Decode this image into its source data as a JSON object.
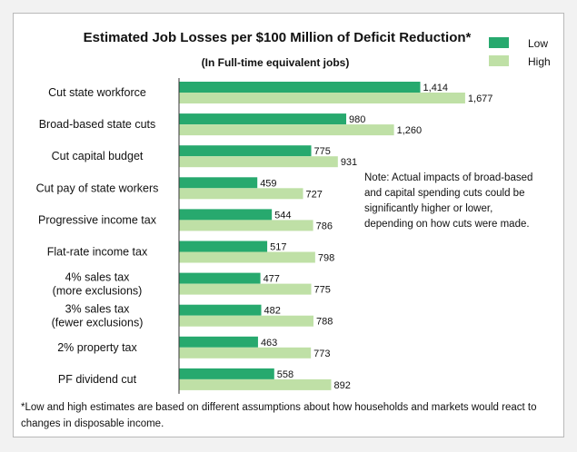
{
  "colors": {
    "low": "#27a96e",
    "high": "#bfe0a6",
    "axis": "#333333"
  },
  "chart_data": {
    "type": "bar",
    "orientation": "horizontal",
    "title": "Estimated Job Losses per $100 Million of Deficit Reduction*",
    "subtitle": "(In Full-time equivalent jobs)",
    "categories": [
      [
        "Cut state workforce"
      ],
      [
        "Broad-based state cuts"
      ],
      [
        "Cut capital budget"
      ],
      [
        "Cut pay of state workers"
      ],
      [
        "Progressive income tax"
      ],
      [
        "Flat-rate income tax"
      ],
      [
        "4% sales tax",
        "(more exclusions)"
      ],
      [
        "3% sales tax",
        "(fewer exclusions)"
      ],
      [
        "2% property tax"
      ],
      [
        "PF dividend cut"
      ]
    ],
    "series": [
      {
        "name": "Low",
        "values": [
          1414,
          980,
          775,
          459,
          544,
          517,
          477,
          482,
          463,
          558
        ],
        "labels": [
          "1,414",
          "980",
          "775",
          "459",
          "544",
          "517",
          "477",
          "482",
          "463",
          "558"
        ]
      },
      {
        "name": "High",
        "values": [
          1677,
          1260,
          931,
          727,
          786,
          798,
          775,
          788,
          773,
          892
        ],
        "labels": [
          "1,677",
          "1,260",
          "931",
          "727",
          "786",
          "798",
          "775",
          "788",
          "773",
          "892"
        ]
      }
    ],
    "xlim": [
      0,
      1800
    ],
    "legend_position": "top-right",
    "note": [
      "Note: Actual impacts of broad-based",
      "and capital spending cuts could be",
      "significantly higher or lower,",
      "depending on how cuts were made."
    ],
    "footnote": [
      "*Low and high estimates are based on different assumptions  about how households and markets would react to",
      "changes in disposable income."
    ]
  }
}
